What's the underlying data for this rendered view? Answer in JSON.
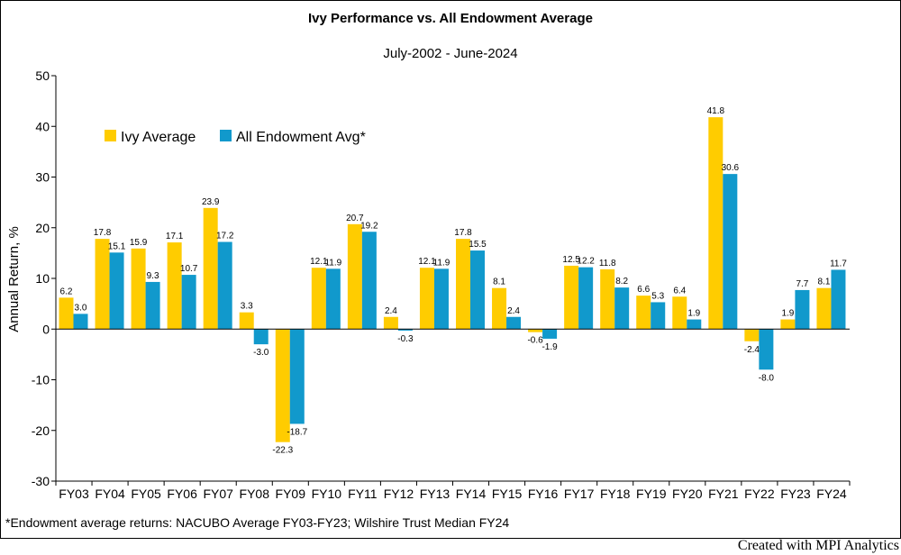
{
  "chart_data": {
    "type": "bar",
    "title": "Ivy Performance vs. All Endowment Average",
    "subtitle": "July-2002 - June-2024",
    "ylabel": "Annual Return, %",
    "xlabel": "",
    "ylim": [
      -30,
      50
    ],
    "yticks": [
      -30,
      -20,
      -10,
      0,
      10,
      20,
      30,
      40,
      50
    ],
    "grid": false,
    "legend_position": "top-left",
    "categories": [
      "FY03",
      "FY04",
      "FY05",
      "FY06",
      "FY07",
      "FY08",
      "FY09",
      "FY10",
      "FY11",
      "FY12",
      "FY13",
      "FY14",
      "FY15",
      "FY16",
      "FY17",
      "FY18",
      "FY19",
      "FY20",
      "FY21",
      "FY22",
      "FY23",
      "FY24"
    ],
    "series": [
      {
        "name": "Ivy Average",
        "color": "#FFCC00",
        "values": [
          6.2,
          17.8,
          15.9,
          17.1,
          23.9,
          3.3,
          -22.3,
          12.1,
          20.7,
          2.4,
          12.1,
          17.8,
          8.1,
          -0.6,
          12.5,
          11.8,
          6.6,
          6.4,
          41.8,
          -2.4,
          1.9,
          8.1
        ]
      },
      {
        "name": "All Endowment Avg*",
        "color": "#1199CC",
        "values": [
          3.0,
          15.1,
          9.3,
          10.7,
          17.2,
          -3.0,
          -18.7,
          11.9,
          19.2,
          -0.3,
          11.9,
          15.5,
          2.4,
          -1.9,
          12.2,
          8.2,
          5.3,
          1.9,
          30.6,
          -8.0,
          7.7,
          11.7
        ]
      }
    ]
  },
  "footnote": "*Endowment average returns: NACUBO Average FY03-FY23; Wilshire Trust Median FY24",
  "credit": "Created with MPI Analytics"
}
